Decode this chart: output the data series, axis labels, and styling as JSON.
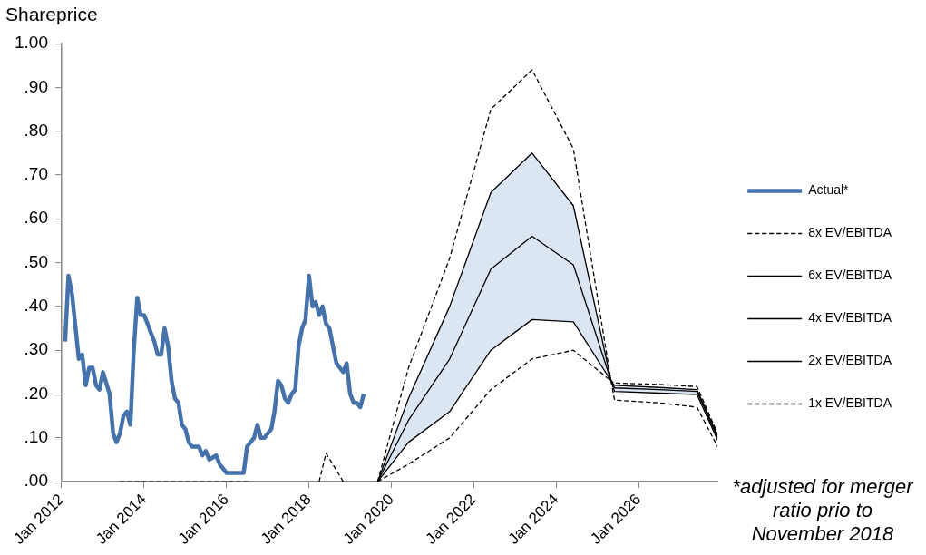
{
  "chart_data": {
    "type": "line",
    "ylabel": "Shareprice",
    "legend": "right",
    "marker": "none",
    "annotations": [
      "*adjusted for merger ratio prio to November 2018"
    ],
    "xlim": [
      "2012-01",
      "2027-12"
    ],
    "xticks": [
      {
        "value": "2012-01",
        "label": "Jan 2012"
      },
      {
        "value": "2014-01",
        "label": "Jan 2014"
      },
      {
        "value": "2016-01",
        "label": "Jan 2016"
      },
      {
        "value": "2018-01",
        "label": "Jan 2018"
      },
      {
        "value": "2020-01",
        "label": "Jan 2020"
      },
      {
        "value": "2022-01",
        "label": "Jan 2022"
      },
      {
        "value": "2024-01",
        "label": "Jan 2024"
      },
      {
        "value": "2026-01",
        "label": "Jan 2026"
      }
    ],
    "ylim": [
      0,
      1
    ],
    "yticks": [
      {
        "value": 0,
        "label": ".00"
      },
      {
        "value": 0.1,
        "label": ".10"
      },
      {
        "value": 0.2,
        "label": ".20"
      },
      {
        "value": 0.3,
        "label": ".30"
      },
      {
        "value": 0.4,
        "label": ".40"
      },
      {
        "value": 0.5,
        "label": ".50"
      },
      {
        "value": 0.6,
        "label": ".60"
      },
      {
        "value": 0.7,
        "label": ".70"
      },
      {
        "value": 0.8,
        "label": ".80"
      },
      {
        "value": 0.9,
        "label": ".90"
      },
      {
        "value": 1,
        "label": "1.00"
      }
    ],
    "series": [
      {
        "name": "Actual*",
        "color": "#4672ab",
        "line_style": "solid",
        "x": [
          "2012-02",
          "2012-03",
          "2012-04",
          "2012-06",
          "2012-07",
          "2012-08",
          "2012-09",
          "2012-10",
          "2012-11",
          "2012-12",
          "2013-01",
          "2013-03",
          "2013-04",
          "2013-05",
          "2013-06",
          "2013-07",
          "2013-08",
          "2013-09",
          "2013-10",
          "2013-11",
          "2013-12",
          "2014-01",
          "2014-02",
          "2014-03",
          "2014-04",
          "2014-05",
          "2014-06",
          "2014-07",
          "2014-08",
          "2014-09",
          "2014-10",
          "2014-11",
          "2014-12",
          "2015-01",
          "2015-02",
          "2015-03",
          "2015-05",
          "2015-06",
          "2015-07",
          "2015-08",
          "2015-10",
          "2015-11",
          "2016-01",
          "2016-03",
          "2016-06",
          "2016-07",
          "2016-08",
          "2016-09",
          "2016-10",
          "2016-11",
          "2016-12",
          "2017-02",
          "2017-03",
          "2017-04",
          "2017-05",
          "2017-06",
          "2017-07",
          "2017-08",
          "2017-09",
          "2017-10",
          "2017-11",
          "2017-12",
          "2018-01",
          "2018-02",
          "2018-03",
          "2018-04",
          "2018-05",
          "2018-06",
          "2018-07",
          "2018-08",
          "2018-09",
          "2018-11",
          "2018-12",
          "2019-01",
          "2019-02",
          "2019-03",
          "2019-04",
          "2019-05"
        ],
        "values": [
          0.32,
          0.47,
          0.43,
          0.28,
          0.29,
          0.22,
          0.26,
          0.26,
          0.22,
          0.21,
          0.25,
          0.2,
          0.11,
          0.09,
          0.11,
          0.15,
          0.16,
          0.13,
          0.3,
          0.42,
          0.38,
          0.38,
          0.36,
          0.34,
          0.32,
          0.29,
          0.29,
          0.35,
          0.31,
          0.23,
          0.19,
          0.18,
          0.13,
          0.12,
          0.09,
          0.08,
          0.08,
          0.06,
          0.07,
          0.05,
          0.06,
          0.04,
          0.02,
          0.02,
          0.02,
          0.08,
          0.09,
          0.1,
          0.13,
          0.1,
          0.1,
          0.12,
          0.16,
          0.23,
          0.22,
          0.19,
          0.18,
          0.2,
          0.21,
          0.31,
          0.35,
          0.37,
          0.47,
          0.4,
          0.41,
          0.38,
          0.4,
          0.36,
          0.35,
          0.31,
          0.27,
          0.25,
          0.27,
          0.2,
          0.18,
          0.18,
          0.17,
          0.2
        ]
      },
      {
        "name": "8x EV/EBITDA",
        "color": "#000000",
        "line_style": "dashed",
        "x": [
          "2013-06",
          "2016-08",
          "2017-06",
          "2018-04",
          "2018-06",
          "2018-11",
          "2019-03",
          "2019-09",
          "2020-06",
          "2021-06",
          "2022-06",
          "2023-06",
          "2024-06",
          "2025-05",
          "2025-06",
          "2026-07",
          "2027-06",
          "2027-12"
        ],
        "values": [
          0,
          0,
          null,
          0,
          0.065,
          0,
          null,
          0,
          0.26,
          0.51,
          0.85,
          0.94,
          0.76,
          0.23,
          0.225,
          0.222,
          0.217,
          0.11
        ]
      },
      {
        "name": "6x EV/EBITDA",
        "color": "#000000",
        "line_style": "solid",
        "x": [
          "2019-09",
          "2020-06",
          "2021-06",
          "2022-06",
          "2023-06",
          "2024-06",
          "2025-05",
          "2025-06",
          "2026-07",
          "2027-06",
          "2027-12"
        ],
        "values": [
          0,
          0.19,
          0.4,
          0.66,
          0.75,
          0.63,
          0.23,
          0.22,
          0.215,
          0.21,
          0.105
        ]
      },
      {
        "name": "4x EV/EBITDA",
        "color": "#000000",
        "line_style": "solid",
        "x": [
          "2019-09",
          "2020-06",
          "2021-06",
          "2022-06",
          "2023-06",
          "2024-06",
          "2025-05",
          "2025-06",
          "2026-07",
          "2027-06",
          "2027-12"
        ],
        "values": [
          0,
          0.14,
          0.28,
          0.485,
          0.56,
          0.495,
          0.23,
          0.214,
          0.21,
          0.206,
          0.1
        ],
        "lower": [
          0,
          0.09,
          0.16,
          0.3,
          0.37,
          0.365,
          0.23,
          0.206,
          0.202,
          0.199,
          0.095
        ],
        "upper": [
          0,
          0.19,
          0.4,
          0.66,
          0.75,
          0.63,
          0.23,
          0.22,
          0.215,
          0.21,
          0.105
        ]
      },
      {
        "name": "2x EV/EBITDA",
        "color": "#000000",
        "line_style": "solid",
        "x": [
          "2019-09",
          "2020-06",
          "2021-06",
          "2022-06",
          "2023-06",
          "2024-06",
          "2025-05",
          "2025-06",
          "2026-07",
          "2027-06",
          "2027-12"
        ],
        "values": [
          0,
          0.09,
          0.16,
          0.3,
          0.37,
          0.365,
          0.23,
          0.206,
          0.202,
          0.199,
          0.095
        ]
      },
      {
        "name": "1x EV/EBITDA",
        "color": "#000000",
        "line_style": "dashed",
        "x": [
          "2019-09",
          "2020-06",
          "2021-06",
          "2022-06",
          "2023-06",
          "2024-06",
          "2025-05",
          "2025-06",
          "2026-07",
          "2027-06",
          "2027-12"
        ],
        "values": [
          0,
          0.04,
          0.1,
          0.21,
          0.28,
          0.3,
          0.23,
          0.186,
          0.18,
          0.17,
          0.08
        ]
      }
    ]
  }
}
